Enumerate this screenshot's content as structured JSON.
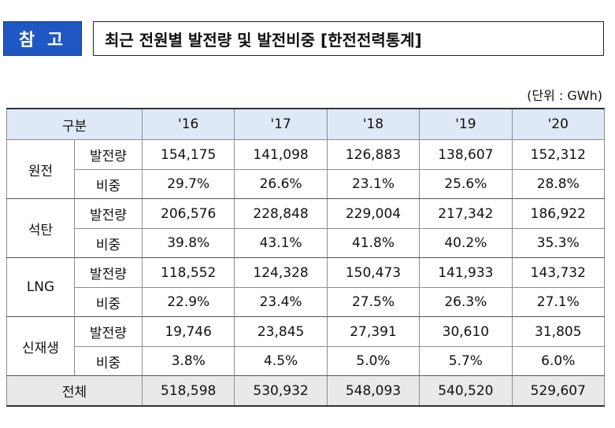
{
  "header": {
    "badge": "참 고",
    "title": "최근 전원별 발전량 및 발전비중 [한전전력통계]"
  },
  "unit_note": "(단위 : GWh)",
  "table": {
    "corner": "구분",
    "years": [
      "'16",
      "'17",
      "'18",
      "'19",
      "'20"
    ],
    "groups": [
      {
        "name": "원전",
        "rows": [
          {
            "metric": "발전량",
            "values": [
              "154,175",
              "141,098",
              "126,883",
              "138,607",
              "152,312"
            ]
          },
          {
            "metric": "비중",
            "values": [
              "29.7%",
              "26.6%",
              "23.1%",
              "25.6%",
              "28.8%"
            ]
          }
        ]
      },
      {
        "name": "석탄",
        "rows": [
          {
            "metric": "발전량",
            "values": [
              "206,576",
              "228,848",
              "229,004",
              "217,342",
              "186,922"
            ]
          },
          {
            "metric": "비중",
            "values": [
              "39.8%",
              "43.1%",
              "41.8%",
              "40.2%",
              "35.3%"
            ]
          }
        ]
      },
      {
        "name": "LNG",
        "rows": [
          {
            "metric": "발전량",
            "values": [
              "118,552",
              "124,328",
              "150,473",
              "141,933",
              "143,732"
            ]
          },
          {
            "metric": "비중",
            "values": [
              "22.9%",
              "23.4%",
              "27.5%",
              "26.3%",
              "27.1%"
            ]
          }
        ]
      },
      {
        "name": "신재생",
        "rows": [
          {
            "metric": "발전량",
            "values": [
              "19,746",
              "23,845",
              "27,391",
              "30,610",
              "31,805"
            ]
          },
          {
            "metric": "비중",
            "values": [
              "3.8%",
              "4.5%",
              "5.0%",
              "5.7%",
              "6.0%"
            ]
          }
        ]
      }
    ],
    "total": {
      "label": "전체",
      "values": [
        "518,598",
        "530,932",
        "548,093",
        "540,520",
        "529,607"
      ]
    }
  }
}
